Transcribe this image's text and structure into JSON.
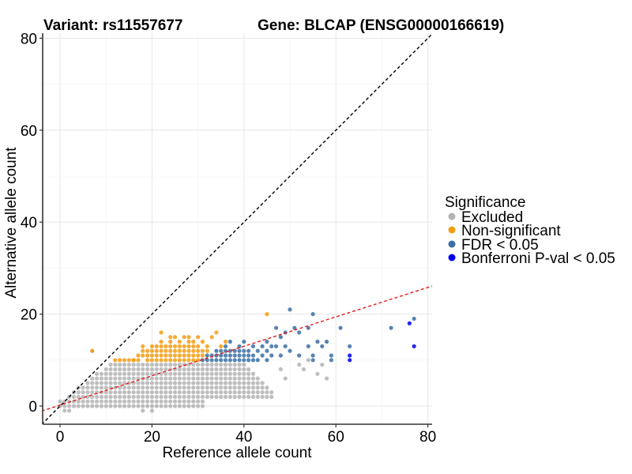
{
  "chart_data": {
    "type": "scatter",
    "title_left": "Variant: rs11557677",
    "title_right": "Gene: BLCAP (ENSG00000166619)",
    "xlabel": "Reference allele count",
    "ylabel": "Alternative allele count",
    "xlim": [
      -4,
      81
    ],
    "ylim": [
      -4,
      81
    ],
    "x_ticks": [
      0,
      20,
      40,
      60,
      80
    ],
    "y_ticks": [
      0,
      20,
      40,
      60,
      80
    ],
    "grid": true,
    "legend": {
      "title": "Significance",
      "position": "right",
      "items": [
        {
          "label": "Excluded",
          "color": "#b3b3b3"
        },
        {
          "label": "Non-significant",
          "color": "#f39c12"
        },
        {
          "label": "FDR < 0.05",
          "color": "#3a6ea5"
        },
        {
          "label": "Bonferroni P-val < 0.05",
          "color": "#0000ee"
        }
      ]
    },
    "reference_lines": [
      {
        "name": "identity",
        "slope": 1,
        "intercept": 0,
        "color": "#000000",
        "style": "dashed"
      },
      {
        "name": "fit",
        "slope": 0.32,
        "intercept": 0.2,
        "color": "#e41a1c",
        "style": "dashed"
      }
    ],
    "series": [
      {
        "name": "Non-significant",
        "color": "#f39c12",
        "points": [
          [
            12,
            10
          ],
          [
            13,
            10
          ],
          [
            14,
            10
          ],
          [
            15,
            10
          ],
          [
            16,
            10
          ],
          [
            17,
            11
          ],
          [
            18,
            11
          ],
          [
            18,
            12
          ],
          [
            19,
            11
          ],
          [
            19,
            12
          ],
          [
            20,
            12
          ],
          [
            20,
            11
          ],
          [
            21,
            12
          ],
          [
            21,
            13
          ],
          [
            21,
            11
          ],
          [
            22,
            12
          ],
          [
            22,
            13
          ],
          [
            22,
            14
          ],
          [
            22,
            11
          ],
          [
            23,
            12
          ],
          [
            23,
            13
          ],
          [
            23,
            11
          ],
          [
            24,
            12
          ],
          [
            24,
            13
          ],
          [
            24,
            14
          ],
          [
            24,
            11
          ],
          [
            25,
            12
          ],
          [
            25,
            13
          ],
          [
            25,
            11
          ],
          [
            25,
            10
          ],
          [
            26,
            12
          ],
          [
            26,
            13
          ],
          [
            26,
            14
          ],
          [
            26,
            11
          ],
          [
            26,
            10
          ],
          [
            27,
            12
          ],
          [
            27,
            13
          ],
          [
            27,
            11
          ],
          [
            27,
            10
          ],
          [
            28,
            12
          ],
          [
            28,
            13
          ],
          [
            28,
            15
          ],
          [
            28,
            11
          ],
          [
            28,
            10
          ],
          [
            29,
            12
          ],
          [
            29,
            13
          ],
          [
            29,
            14
          ],
          [
            29,
            11
          ],
          [
            29,
            10
          ],
          [
            30,
            12
          ],
          [
            30,
            13
          ],
          [
            30,
            11
          ],
          [
            30,
            10
          ],
          [
            31,
            12
          ],
          [
            31,
            11
          ],
          [
            32,
            13
          ],
          [
            32,
            12
          ],
          [
            22,
            16
          ],
          [
            25,
            15
          ],
          [
            27,
            15
          ],
          [
            30,
            15
          ],
          [
            33,
            15
          ],
          [
            34,
            16
          ],
          [
            45,
            20
          ],
          [
            7,
            12
          ],
          [
            16,
            10
          ],
          [
            17,
            10
          ],
          [
            19,
            10
          ],
          [
            20,
            10
          ],
          [
            21,
            10
          ],
          [
            22,
            10
          ],
          [
            23,
            10
          ],
          [
            24,
            10
          ],
          [
            28,
            14
          ],
          [
            31,
            14
          ],
          [
            35,
            13
          ],
          [
            36,
            14
          ],
          [
            24,
            15
          ],
          [
            20,
            13
          ],
          [
            18,
            13
          ]
        ]
      },
      {
        "name": "FDR < 0.05",
        "color": "#3a6ea5",
        "points": [
          [
            31,
            10
          ],
          [
            32,
            10
          ],
          [
            32,
            11
          ],
          [
            33,
            10
          ],
          [
            33,
            11
          ],
          [
            34,
            10
          ],
          [
            34,
            11
          ],
          [
            34,
            12
          ],
          [
            35,
            10
          ],
          [
            35,
            11
          ],
          [
            35,
            12
          ],
          [
            36,
            10
          ],
          [
            36,
            11
          ],
          [
            36,
            12
          ],
          [
            36,
            13
          ],
          [
            37,
            10
          ],
          [
            37,
            11
          ],
          [
            37,
            12
          ],
          [
            37,
            14
          ],
          [
            38,
            10
          ],
          [
            38,
            11
          ],
          [
            38,
            12
          ],
          [
            39,
            10
          ],
          [
            39,
            11
          ],
          [
            39,
            12
          ],
          [
            39,
            13
          ],
          [
            40,
            10
          ],
          [
            40,
            11
          ],
          [
            40,
            12
          ],
          [
            40,
            14
          ],
          [
            41,
            10
          ],
          [
            41,
            11
          ],
          [
            41,
            12
          ],
          [
            42,
            10
          ],
          [
            42,
            11
          ],
          [
            42,
            13
          ],
          [
            43,
            10
          ],
          [
            43,
            12
          ],
          [
            44,
            11
          ],
          [
            44,
            13
          ],
          [
            45,
            10
          ],
          [
            45,
            12
          ],
          [
            45,
            14
          ],
          [
            46,
            11
          ],
          [
            46,
            13
          ],
          [
            47,
            17
          ],
          [
            48,
            15
          ],
          [
            49,
            13
          ],
          [
            50,
            21
          ],
          [
            50,
            12
          ],
          [
            51,
            17
          ],
          [
            52,
            16
          ],
          [
            52,
            11
          ],
          [
            54,
            17
          ],
          [
            54,
            13
          ],
          [
            55,
            20
          ],
          [
            55,
            10
          ],
          [
            55,
            11
          ],
          [
            56,
            14
          ],
          [
            57,
            13
          ],
          [
            58,
            14
          ],
          [
            59,
            10
          ],
          [
            59,
            11
          ],
          [
            61,
            17
          ],
          [
            63,
            13
          ],
          [
            72,
            17
          ],
          [
            77,
            19
          ],
          [
            47,
            13
          ],
          [
            48,
            11
          ],
          [
            49,
            16
          ]
        ]
      },
      {
        "name": "Bonferroni P-val < 0.05",
        "color": "#0000ee",
        "points": [
          [
            63,
            11
          ],
          [
            63,
            10
          ],
          [
            76,
            18
          ],
          [
            77,
            13
          ]
        ]
      }
    ]
  }
}
